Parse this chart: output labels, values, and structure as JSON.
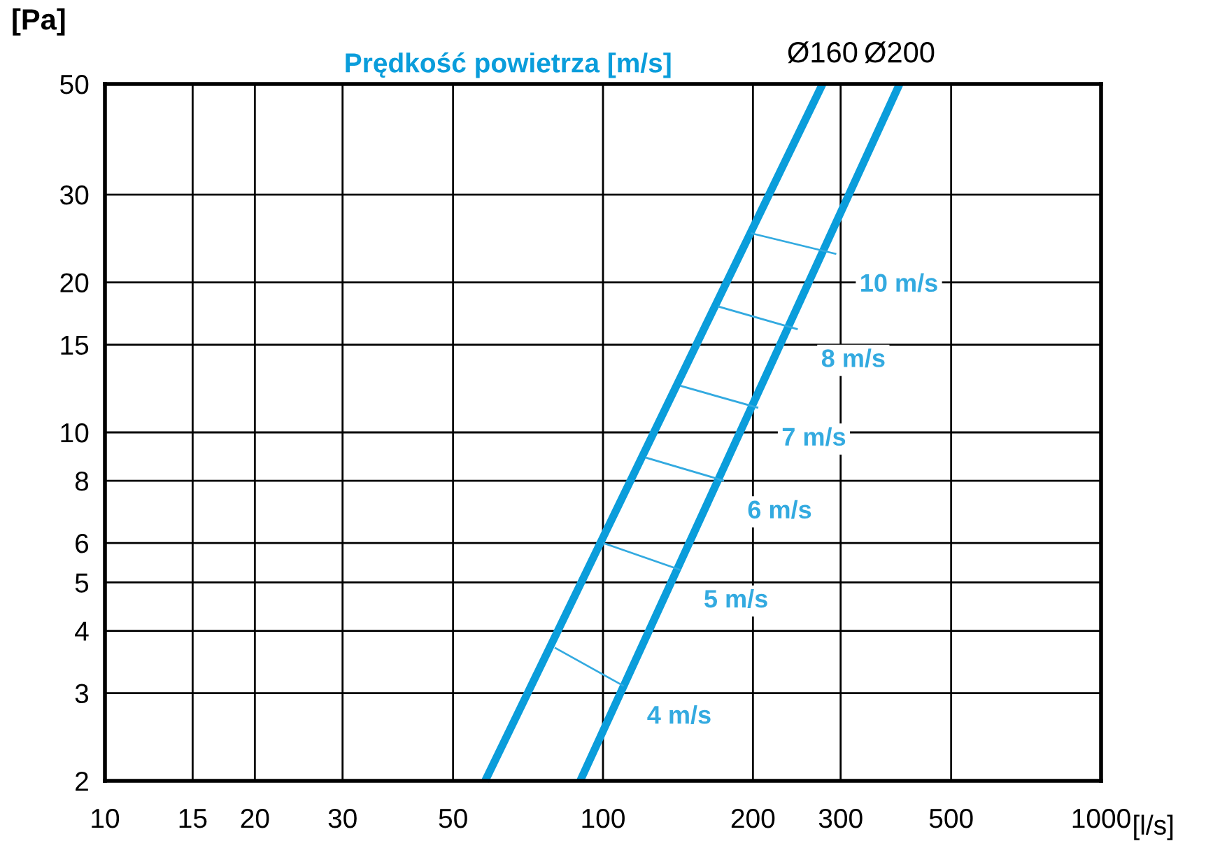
{
  "chart_data": {
    "type": "line",
    "title": "Prędkość powietrza [m/s]",
    "xlabel": "[l/s]",
    "ylabel": "[Pa]",
    "log": "xy",
    "grid": true,
    "legend": false,
    "marker": "none",
    "line_style": "solid",
    "xlim": [
      10,
      1000
    ],
    "xticks": [
      10,
      15,
      20,
      30,
      50,
      100,
      200,
      300,
      500,
      1000
    ],
    "ylim": [
      2,
      50
    ],
    "yticks": [
      2,
      3,
      4,
      5,
      6,
      8,
      10,
      15,
      20,
      30,
      50
    ],
    "series": [
      {
        "name": "Ø160",
        "color": "#0a9ddb",
        "x": [
          58,
          276
        ],
        "values": [
          2,
          50
        ]
      },
      {
        "name": "Ø200",
        "color": "#0a9ddb",
        "x": [
          90,
          394
        ],
        "values": [
          2,
          50
        ]
      },
      {
        "name": "10 m/s",
        "color": "#33aae0",
        "x": [
          198,
          294
        ],
        "values": [
          25.1,
          22.8
        ]
      },
      {
        "name": "8 m/s",
        "color": "#33aae0",
        "x": [
          170,
          246
        ],
        "values": [
          17.9,
          16.1
        ]
      },
      {
        "name": "7 m/s",
        "color": "#33aae0",
        "x": [
          143,
          205
        ],
        "values": [
          12.4,
          11.2
        ]
      },
      {
        "name": "6 m/s",
        "color": "#33aae0",
        "x": [
          122,
          175
        ],
        "values": [
          8.9,
          8.0
        ]
      },
      {
        "name": "5 m/s",
        "color": "#33aae0",
        "x": [
          100,
          143
        ],
        "values": [
          6.0,
          5.3
        ]
      },
      {
        "name": "4 m/s",
        "color": "#33aae0",
        "x": [
          80,
          110
        ],
        "values": [
          3.7,
          3.1
        ]
      }
    ]
  }
}
